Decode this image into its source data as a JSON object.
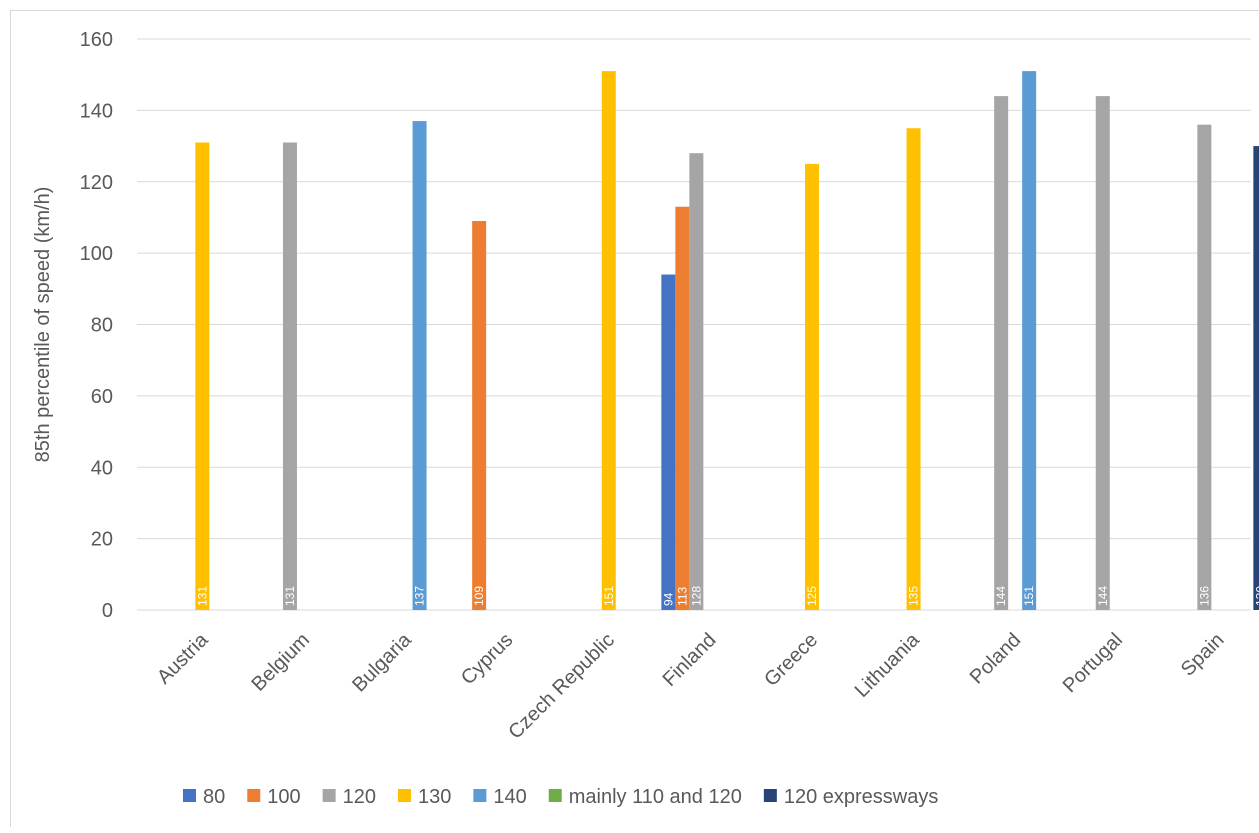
{
  "chart_data": {
    "type": "bar",
    "title": "",
    "xlabel": "",
    "ylabel": "85th percentile of speed (km/h)",
    "ylim": [
      0,
      160
    ],
    "yticks": [
      0,
      20,
      40,
      60,
      80,
      100,
      120,
      140,
      160
    ],
    "grid": true,
    "legend_position": "bottom",
    "categories": [
      "Austria",
      "Belgium",
      "Bulgaria",
      "Cyprus",
      "Czech Republic",
      "Finland",
      "Greece",
      "Lithuania",
      "Poland",
      "Portugal",
      "Spain"
    ],
    "series": [
      {
        "name": "80",
        "color": "#4472C4",
        "values": [
          null,
          null,
          null,
          null,
          null,
          94,
          null,
          null,
          null,
          null,
          null
        ]
      },
      {
        "name": "100",
        "color": "#ED7D31",
        "values": [
          null,
          null,
          null,
          109,
          null,
          113,
          null,
          null,
          null,
          null,
          null
        ]
      },
      {
        "name": "120",
        "color": "#A5A5A5",
        "values": [
          null,
          131,
          null,
          null,
          null,
          128,
          null,
          null,
          144,
          144,
          136
        ]
      },
      {
        "name": "130",
        "color": "#FFC000",
        "values": [
          131,
          null,
          null,
          null,
          151,
          null,
          125,
          135,
          null,
          null,
          null
        ]
      },
      {
        "name": "140",
        "color": "#5B9BD5",
        "values": [
          null,
          null,
          137,
          null,
          null,
          null,
          null,
          null,
          151,
          null,
          null
        ]
      },
      {
        "name": "mainly 110 and 120",
        "color": "#70AD47",
        "values": [
          null,
          null,
          null,
          null,
          null,
          null,
          null,
          null,
          null,
          null,
          null
        ]
      },
      {
        "name": "120 expressways",
        "color": "#264478",
        "values": [
          null,
          null,
          null,
          null,
          null,
          null,
          null,
          null,
          null,
          null,
          130
        ]
      }
    ]
  }
}
